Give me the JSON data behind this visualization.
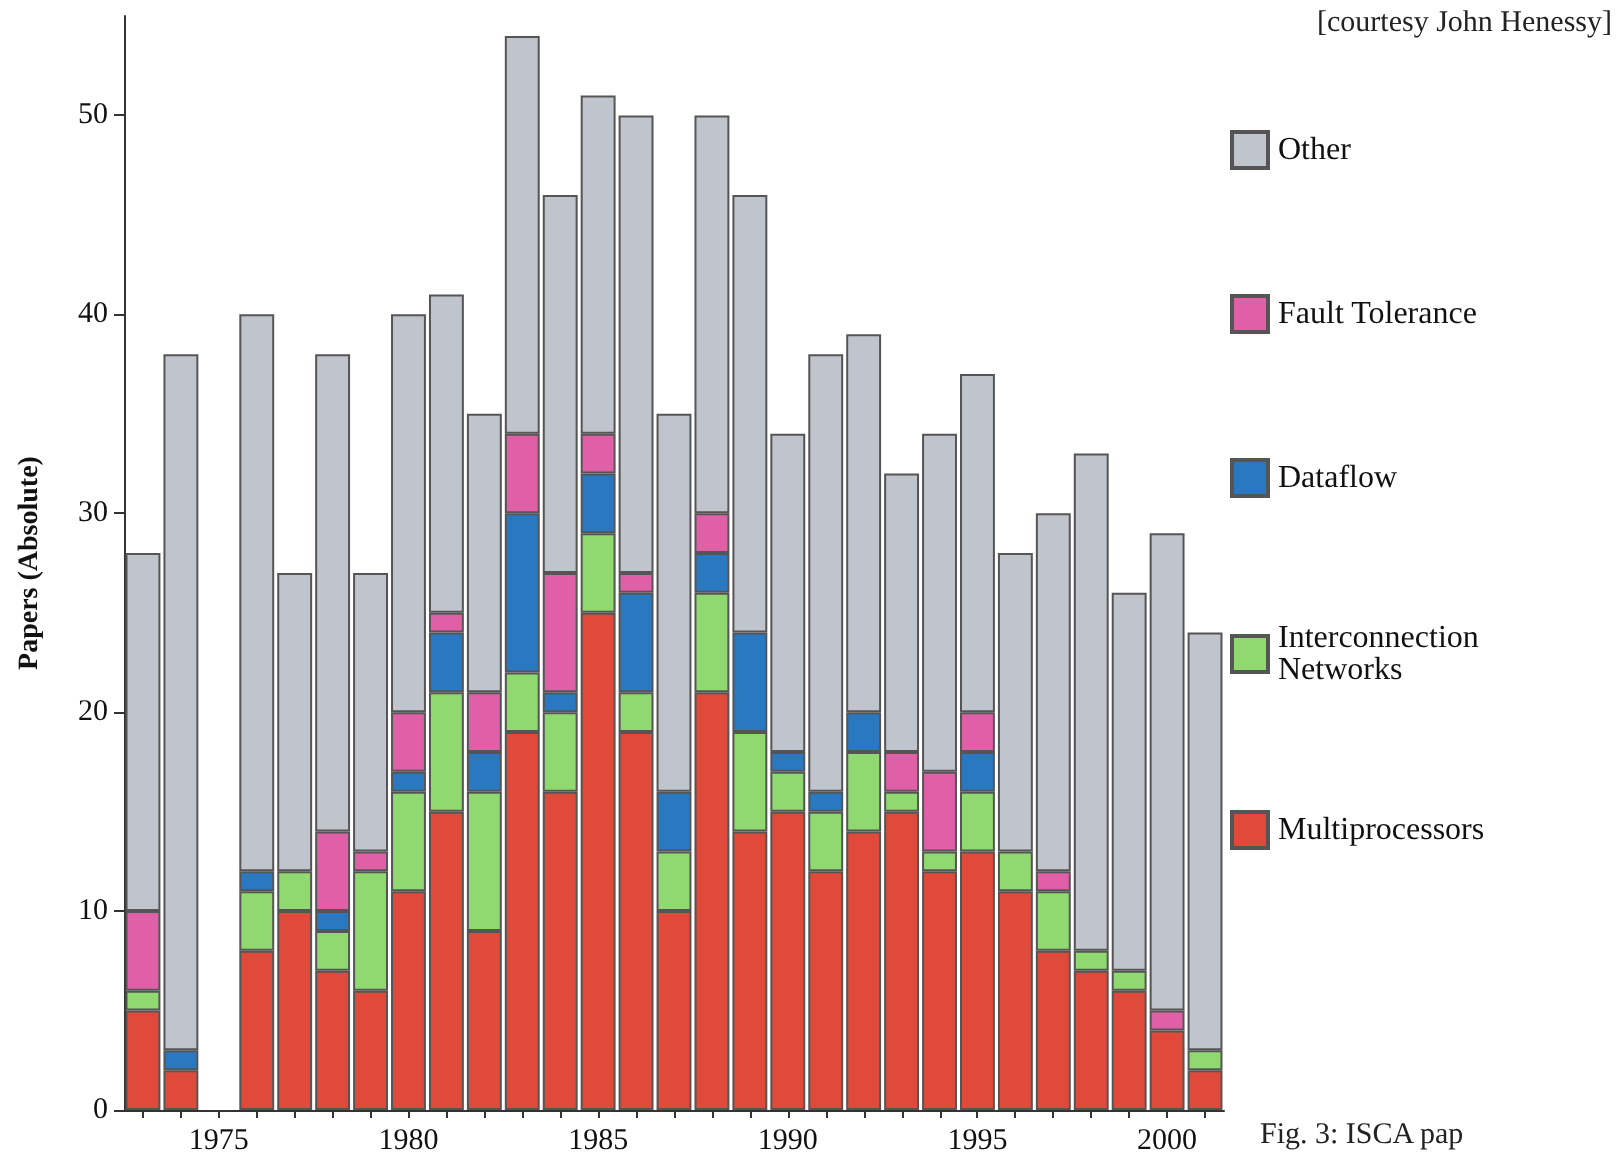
{
  "chart_data": {
    "type": "bar",
    "stacked": true,
    "ylabel": "Papers (Absolute)",
    "annotations": [
      "[courtesy John Henessy]",
      "Fig. 3: ISCA pap"
    ],
    "categories": [
      null,
      null,
      "1975",
      null,
      null,
      null,
      null,
      "1980",
      null,
      null,
      null,
      null,
      "1985",
      null,
      null,
      null,
      null,
      "1990",
      null,
      null,
      null,
      null,
      "1995",
      null,
      null,
      null,
      null,
      "2000",
      null
    ],
    "ylim": [
      0,
      55
    ],
    "yticks": [
      0,
      10,
      20,
      30,
      40,
      50
    ],
    "grid": false,
    "legend": "right",
    "series": [
      {
        "name": "Multiprocessors",
        "color": "#e04a3a",
        "values": [
          5,
          2,
          null,
          8,
          10,
          7,
          6,
          11,
          15,
          9,
          19,
          16,
          25,
          19,
          10,
          21,
          14,
          15,
          12,
          14,
          15,
          12,
          13,
          11,
          8,
          7,
          6,
          4,
          2
        ]
      },
      {
        "name": "Interconnection Networks",
        "color": "#90d870",
        "values": [
          1,
          0,
          null,
          3,
          2,
          2,
          6,
          5,
          6,
          7,
          3,
          4,
          4,
          2,
          3,
          5,
          5,
          2,
          3,
          4,
          1,
          1,
          3,
          2,
          3,
          1,
          1,
          0,
          1
        ]
      },
      {
        "name": "Dataflow",
        "color": "#2a78c0",
        "values": [
          0,
          1,
          null,
          1,
          0,
          1,
          0,
          1,
          3,
          2,
          8,
          1,
          3,
          5,
          3,
          2,
          5,
          1,
          1,
          2,
          0,
          0,
          2,
          0,
          0,
          0,
          0,
          0,
          0
        ]
      },
      {
        "name": "Fault Tolerance",
        "color": "#e060a8",
        "values": [
          4,
          0,
          null,
          0,
          0,
          4,
          1,
          3,
          1,
          3,
          4,
          6,
          2,
          1,
          0,
          2,
          0,
          0,
          0,
          0,
          2,
          4,
          2,
          0,
          1,
          0,
          0,
          1,
          0
        ]
      },
      {
        "name": "Other",
        "color": "#c0c4cc",
        "values": [
          18,
          35,
          null,
          28,
          15,
          24,
          14,
          20,
          16,
          14,
          20,
          19,
          17,
          23,
          19,
          20,
          22,
          16,
          22,
          19,
          14,
          17,
          17,
          15,
          18,
          25,
          19,
          24,
          21
        ]
      }
    ]
  }
}
